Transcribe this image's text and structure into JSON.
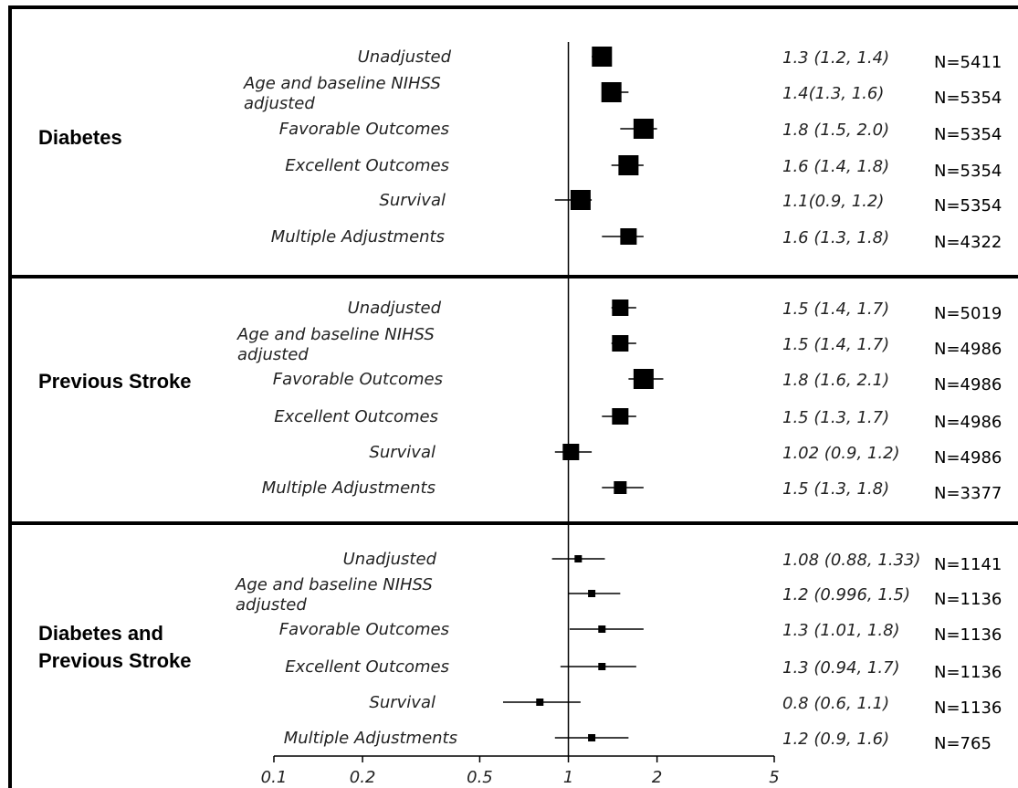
{
  "chart_data": {
    "type": "forest",
    "x_scale": "log",
    "xlim": [
      0.1,
      5
    ],
    "reference_value": 1,
    "x_ticks": [
      "0.1",
      "0.2",
      "0.5",
      "1",
      "2",
      "5"
    ],
    "x_tick_values": [
      0.1,
      0.2,
      0.5,
      1,
      2,
      5
    ],
    "groups": [
      {
        "name": "Diabetes",
        "rows": [
          {
            "label": "Unadjusted",
            "estimate": 1.3,
            "lower": 1.2,
            "upper": 1.4,
            "ci_text": "1.3 (1.2, 1.4)",
            "n_text": "N=5411",
            "size": "large"
          },
          {
            "label": "Age and baseline NIHSS adjusted",
            "estimate": 1.4,
            "lower": 1.3,
            "upper": 1.6,
            "ci_text": "1.4(1.3, 1.6)",
            "n_text": "N=5354",
            "size": "large"
          },
          {
            "label": "Favorable Outcomes",
            "estimate": 1.8,
            "lower": 1.5,
            "upper": 2.0,
            "ci_text": "1.8 (1.5, 2.0)",
            "n_text": "N=5354",
            "size": "large"
          },
          {
            "label": "Excellent Outcomes",
            "estimate": 1.6,
            "lower": 1.4,
            "upper": 1.8,
            "ci_text": "1.6 (1.4, 1.8)",
            "n_text": "N=5354",
            "size": "large"
          },
          {
            "label": "Survival",
            "estimate": 1.1,
            "lower": 0.9,
            "upper": 1.2,
            "ci_text": "1.1(0.9, 1.2)",
            "n_text": "N=5354",
            "size": "large"
          },
          {
            "label": "Multiple  Adjustments",
            "estimate": 1.6,
            "lower": 1.3,
            "upper": 1.8,
            "ci_text": "1.6 (1.3, 1.8)",
            "n_text": "N=4322",
            "size": "medium"
          }
        ]
      },
      {
        "name": "Previous Stroke",
        "rows": [
          {
            "label": "Unadjusted",
            "estimate": 1.5,
            "lower": 1.4,
            "upper": 1.7,
            "ci_text": "1.5 (1.4, 1.7)",
            "n_text": "N=5019",
            "size": "medium"
          },
          {
            "label": "Age and baseline NIHSS adjusted",
            "estimate": 1.5,
            "lower": 1.4,
            "upper": 1.7,
            "ci_text": "1.5 (1.4, 1.7)",
            "n_text": "N=4986",
            "size": "medium"
          },
          {
            "label": "Favorable Outcomes",
            "estimate": 1.8,
            "lower": 1.6,
            "upper": 2.1,
            "ci_text": "1.8 (1.6, 2.1)",
            "n_text": "N=4986",
            "size": "large"
          },
          {
            "label": "Excellent Outcomes",
            "estimate": 1.5,
            "lower": 1.3,
            "upper": 1.7,
            "ci_text": "1.5 (1.3, 1.7)",
            "n_text": "N=4986",
            "size": "medium"
          },
          {
            "label": "Survival",
            "estimate": 1.02,
            "lower": 0.9,
            "upper": 1.2,
            "ci_text": "1.02 (0.9, 1.2)",
            "n_text": "N=4986",
            "size": "medium"
          },
          {
            "label": "Multiple  Adjustments",
            "estimate": 1.5,
            "lower": 1.3,
            "upper": 1.8,
            "ci_text": "1.5 (1.3, 1.8)",
            "n_text": "N=3377",
            "size": "small"
          }
        ]
      },
      {
        "name": "Diabetes and Previous Stroke",
        "rows": [
          {
            "label": "Unadjusted",
            "estimate": 1.08,
            "lower": 0.88,
            "upper": 1.33,
            "ci_text": "1.08 (0.88, 1.33)",
            "n_text": "N=1141",
            "size": "tiny"
          },
          {
            "label": "Age and baseline NIHSS adjusted",
            "estimate": 1.2,
            "lower": 0.996,
            "upper": 1.5,
            "ci_text": "1.2 (0.996, 1.5)",
            "n_text": "N=1136",
            "size": "tiny"
          },
          {
            "label": "Favorable Outcomes",
            "estimate": 1.3,
            "lower": 1.01,
            "upper": 1.8,
            "ci_text": "1.3 (1.01, 1.8)",
            "n_text": "N=1136",
            "size": "tiny"
          },
          {
            "label": "Excellent Outcomes",
            "estimate": 1.3,
            "lower": 0.94,
            "upper": 1.7,
            "ci_text": "1.3 (0.94, 1.7)",
            "n_text": "N=1136",
            "size": "tiny"
          },
          {
            "label": "Survival",
            "estimate": 0.8,
            "lower": 0.6,
            "upper": 1.1,
            "ci_text": "0.8 (0.6, 1.1)",
            "n_text": "N=1136",
            "size": "tiny"
          },
          {
            "label": "Multiple  Adjustments",
            "estimate": 1.2,
            "lower": 0.9,
            "upper": 1.6,
            "ci_text": "1.2 (0.9, 1.6)",
            "n_text": "N=765",
            "size": "tiny"
          }
        ]
      }
    ]
  }
}
